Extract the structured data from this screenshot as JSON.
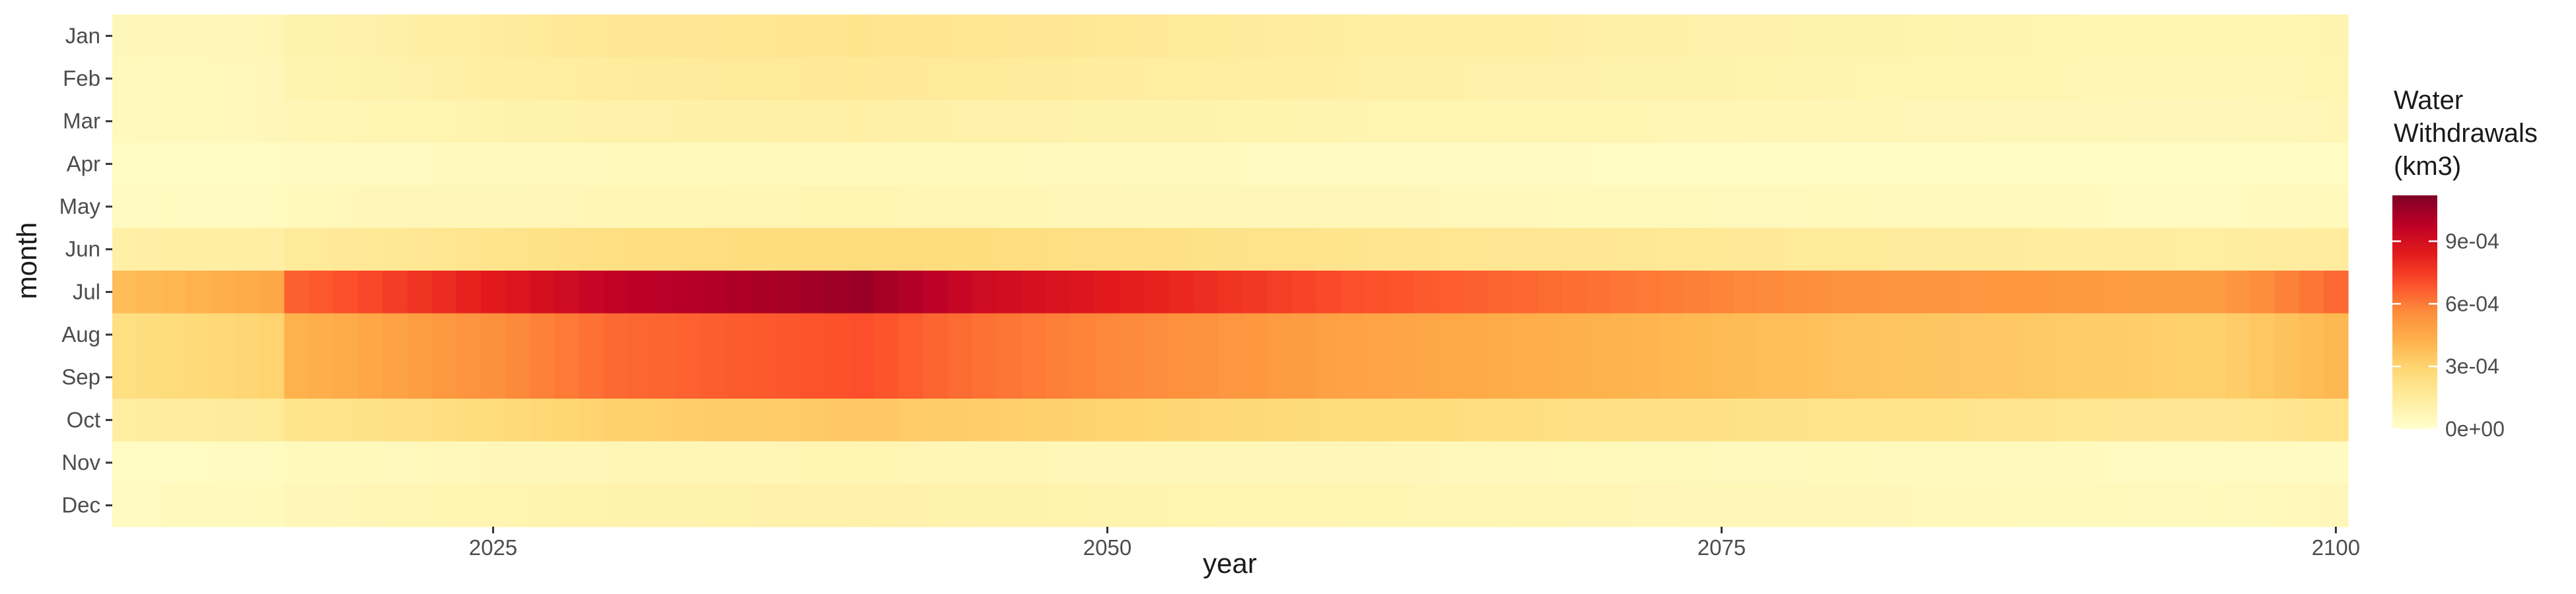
{
  "chart_data": {
    "type": "heatmap",
    "xlabel": "year",
    "ylabel": "month",
    "months": [
      "Jan",
      "Feb",
      "Mar",
      "Apr",
      "May",
      "Jun",
      "Jul",
      "Aug",
      "Sep",
      "Oct",
      "Nov",
      "Dec"
    ],
    "year_range": [
      2010,
      2100
    ],
    "x_ticks": [
      2025,
      2050,
      2075,
      2100
    ],
    "legend": {
      "title_lines": [
        "Water",
        "Withdrawals",
        "(km3)"
      ],
      "placement": "right",
      "ticks": [
        {
          "value": 0,
          "label": "0e+00"
        },
        {
          "value": 0.0003,
          "label": "3e-04"
        },
        {
          "value": 0.0006,
          "label": "6e-04"
        },
        {
          "value": 0.0009,
          "label": "9e-04"
        }
      ],
      "range": [
        0,
        0.00112
      ]
    },
    "colorscale": [
      "#ffffcc",
      "#ffeda0",
      "#fed976",
      "#feb24c",
      "#fd8d3c",
      "#fc4e2a",
      "#e31a1c",
      "#bd0026",
      "#800026"
    ],
    "month_profile": {
      "key_years": [
        2010,
        2016,
        2017,
        2020,
        2030,
        2040,
        2045,
        2060,
        2080,
        2095,
        2100
      ],
      "series": [
        {
          "month": "Jan",
          "values": [
            6e-05,
            7e-05,
            0.0001,
            0.00011,
            0.00018,
            0.0002,
            0.00019,
            0.00014,
            0.0001,
            8e-05,
            9e-05
          ]
        },
        {
          "month": "Feb",
          "values": [
            5e-05,
            6e-05,
            9e-05,
            0.0001,
            0.00015,
            0.00017,
            0.00016,
            0.00012,
            9e-05,
            7e-05,
            8e-05
          ]
        },
        {
          "month": "Mar",
          "values": [
            5e-05,
            6e-05,
            7e-05,
            8e-05,
            0.00011,
            0.00012,
            0.00011,
            9e-05,
            7e-05,
            6e-05,
            7e-05
          ]
        },
        {
          "month": "Apr",
          "values": [
            3e-05,
            3e-05,
            4e-05,
            4e-05,
            5e-05,
            5e-05,
            5e-05,
            4e-05,
            3e-05,
            3e-05,
            3e-05
          ]
        },
        {
          "month": "May",
          "values": [
            4e-05,
            4e-05,
            5e-05,
            6e-05,
            7e-05,
            8e-05,
            7e-05,
            6e-05,
            5e-05,
            4e-05,
            5e-05
          ]
        },
        {
          "month": "Jun",
          "values": [
            0.00012,
            0.00013,
            0.00016,
            0.00017,
            0.00024,
            0.00026,
            0.00025,
            0.0002,
            0.00016,
            0.00014,
            0.00015
          ]
        },
        {
          "month": "Jul",
          "values": [
            0.00038,
            0.00046,
            0.00066,
            0.00072,
            0.00097,
            0.00106,
            0.00092,
            0.0007,
            0.00054,
            0.0005,
            0.00064
          ]
        },
        {
          "month": "Aug",
          "values": [
            0.00024,
            0.0003,
            0.00042,
            0.00046,
            0.00064,
            0.0007,
            0.00062,
            0.00048,
            0.00036,
            0.00031,
            0.0004
          ]
        },
        {
          "month": "Sep",
          "values": [
            0.00024,
            0.0003,
            0.00042,
            0.00046,
            0.00064,
            0.0007,
            0.00062,
            0.00048,
            0.00036,
            0.00031,
            0.0004
          ]
        },
        {
          "month": "Oct",
          "values": [
            0.00014,
            0.00016,
            0.0002,
            0.00022,
            0.00031,
            0.00034,
            0.00032,
            0.00026,
            0.00021,
            0.00018,
            0.00021
          ]
        },
        {
          "month": "Nov",
          "values": [
            3e-05,
            4e-05,
            5e-05,
            5e-05,
            7e-05,
            8e-05,
            7e-05,
            6e-05,
            5e-05,
            4e-05,
            4e-05
          ]
        },
        {
          "month": "Dec",
          "values": [
            4e-05,
            5e-05,
            6e-05,
            7e-05,
            0.0001,
            0.00011,
            0.0001,
            8e-05,
            6e-05,
            5e-05,
            6e-05
          ]
        }
      ]
    },
    "grid": false
  }
}
